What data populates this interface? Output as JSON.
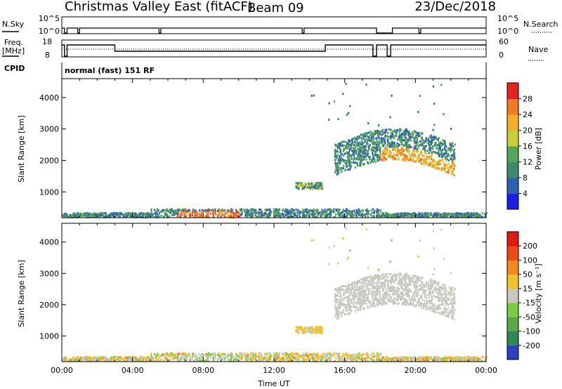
{
  "header": {
    "radar": "Christmas Valley East (fitACF)",
    "beam": "Beam 09",
    "date": "23/Dec/2018"
  },
  "top_panels": {
    "nsky_label": "N.Sky",
    "nsky_ticks": [
      "10^5",
      "10^0"
    ],
    "nsearch_label": "N.Search",
    "nsearch_ticks": [
      "10^5",
      "10^0"
    ],
    "freq_label_1": "Freq.",
    "freq_label_2": "[MHz]",
    "freq_ticks": [
      "18",
      "8"
    ],
    "nave_label": "Nave",
    "nave_ticks": [
      "60",
      "0"
    ],
    "cpid_label": "CPID",
    "cpid_value": "normal (fast) 151 RF"
  },
  "chart_data": [
    {
      "type": "heatmap",
      "name": "power",
      "ylabel": "Slant Range [km]",
      "yticks": [
        1000,
        2000,
        3000,
        4000
      ],
      "ylim": [
        180,
        4600
      ],
      "colorbar_label": "Power [dB]",
      "colorbar_ticks": [
        28,
        24,
        20,
        16,
        12,
        8,
        4
      ],
      "colorbar_range": [
        0,
        32
      ],
      "colors": [
        "#1d1de8",
        "#2f5fb0",
        "#3f8a6a",
        "#56a65a",
        "#c9cc3a",
        "#f0b02a",
        "#f07a22",
        "#e4231e"
      ]
    },
    {
      "type": "heatmap",
      "name": "velocity",
      "ylabel": "Slant Range [km]",
      "xlabel": "Time UT",
      "yticks": [
        1000,
        2000,
        3000,
        4000
      ],
      "ylim": [
        180,
        4600
      ],
      "xticks": [
        "00:00",
        "04:00",
        "08:00",
        "12:00",
        "16:00",
        "20:00",
        "00:00"
      ],
      "xlim_hours": [
        0,
        24
      ],
      "colorbar_label": "Velocity [m s⁻¹]",
      "colorbar_ticks": [
        "200",
        "100",
        "50",
        "15",
        "-15",
        "-50",
        "-100",
        "-200"
      ],
      "colors": [
        "#2b3fbf",
        "#2e8a55",
        "#58a84a",
        "#7ccd3c",
        "#c8c8c0",
        "#f0c22a",
        "#f08a1e",
        "#f04a14",
        "#e01a12"
      ]
    }
  ]
}
